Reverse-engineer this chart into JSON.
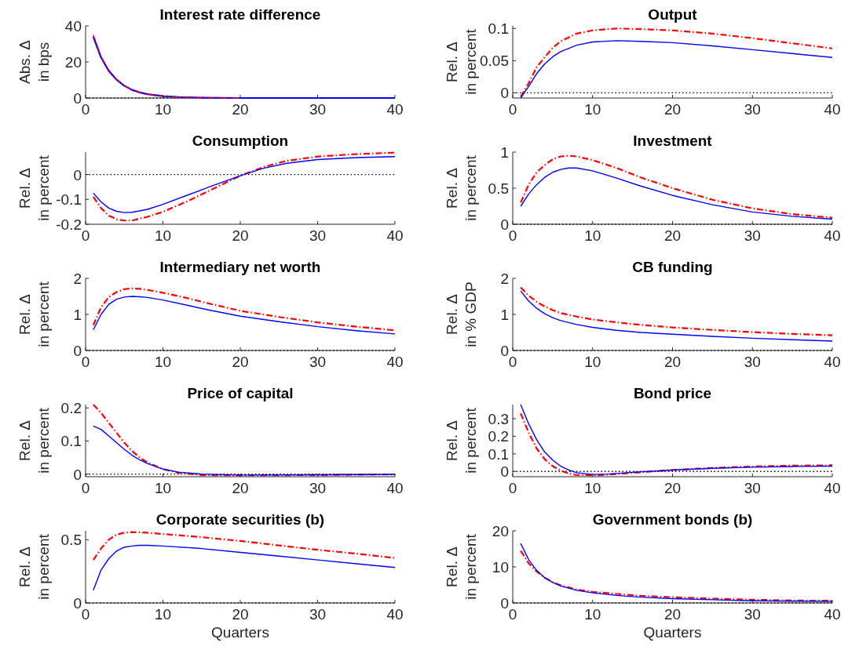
{
  "chart_data": [
    {
      "type": "line",
      "title": "Interest rate difference",
      "ylabel": "Abs. Δ\nin bps",
      "xlim": [
        0,
        40
      ],
      "xticks": [
        0,
        10,
        20,
        30,
        40
      ],
      "ylim": [
        0,
        40
      ],
      "yticks": [
        0,
        20,
        40
      ],
      "x": [
        1,
        2,
        3,
        4,
        5,
        6,
        7,
        8,
        10,
        12,
        15,
        20,
        30,
        40
      ],
      "grid": false,
      "ref_lines": [
        {
          "axis": "y",
          "value": 0,
          "color": "#000000",
          "line_style": "dotted"
        }
      ],
      "series": [
        {
          "color": "#0000ff",
          "line_style": "solid",
          "values": [
            34,
            22.5,
            15,
            10.2,
            6.8,
            4.5,
            3.1,
            2.1,
            1,
            0.5,
            0.2,
            0,
            0,
            0
          ]
        },
        {
          "color": "#ff0000",
          "line_style": "dashdot",
          "values": [
            35,
            23,
            15.5,
            10.5,
            7,
            4.7,
            3.2,
            2.2,
            1,
            0.5,
            0.2,
            0,
            null,
            null
          ]
        }
      ]
    },
    {
      "type": "line",
      "title": "Output",
      "ylabel": "Rel. Δ\nin percent",
      "xlim": [
        0,
        40
      ],
      "xticks": [
        0,
        10,
        20,
        30,
        40
      ],
      "ylim": [
        -0.008,
        0.104
      ],
      "yticks": [
        0,
        0.05,
        0.1
      ],
      "x": [
        1,
        2,
        3,
        4,
        5,
        6,
        8,
        10,
        13,
        16,
        20,
        25,
        30,
        35,
        40
      ],
      "grid": false,
      "ref_lines": [
        {
          "axis": "y",
          "value": 0,
          "color": "#000000",
          "line_style": "dotted"
        }
      ],
      "series": [
        {
          "color": "#ff0000",
          "line_style": "dashdot",
          "values": [
            -0.006,
            0.015,
            0.04,
            0.055,
            0.07,
            0.08,
            0.092,
            0.097,
            0.1,
            0.099,
            0.097,
            0.092,
            0.085,
            0.077,
            0.069
          ]
        },
        {
          "color": "#0000ff",
          "line_style": "solid",
          "values": [
            -0.008,
            0.01,
            0.03,
            0.045,
            0.056,
            0.064,
            0.074,
            0.079,
            0.081,
            0.08,
            0.078,
            0.073,
            0.067,
            0.061,
            0.055
          ]
        }
      ]
    },
    {
      "type": "line",
      "title": "Consumption",
      "ylabel": "Rel. Δ\nin percent",
      "xlim": [
        0,
        40
      ],
      "xticks": [
        0,
        10,
        20,
        30,
        40
      ],
      "ylim": [
        -0.2,
        0.09
      ],
      "yticks": [
        -0.2,
        -0.1,
        0
      ],
      "x": [
        1,
        2,
        3,
        4,
        5,
        6,
        8,
        10,
        13,
        16,
        20,
        23,
        26,
        30,
        35,
        40
      ],
      "grid": false,
      "ref_lines": [
        {
          "axis": "y",
          "value": 0,
          "color": "#000000",
          "line_style": "dotted"
        }
      ],
      "series": [
        {
          "color": "#ff0000",
          "line_style": "dashdot",
          "values": [
            -0.09,
            -0.135,
            -0.165,
            -0.18,
            -0.185,
            -0.185,
            -0.17,
            -0.15,
            -0.11,
            -0.065,
            -0.005,
            0.03,
            0.055,
            0.072,
            0.082,
            0.088
          ]
        },
        {
          "color": "#0000ff",
          "line_style": "solid",
          "values": [
            -0.075,
            -0.11,
            -0.135,
            -0.148,
            -0.153,
            -0.152,
            -0.14,
            -0.12,
            -0.085,
            -0.05,
            -0.005,
            0.025,
            0.045,
            0.06,
            0.068,
            0.072
          ]
        }
      ]
    },
    {
      "type": "line",
      "title": "Investment",
      "ylabel": "Rel. Δ\nin percent",
      "xlim": [
        0,
        40
      ],
      "xticks": [
        0,
        10,
        20,
        30,
        40
      ],
      "ylim": [
        0,
        1
      ],
      "yticks": [
        0,
        0.5,
        1
      ],
      "x": [
        1,
        2,
        3,
        4,
        5,
        6,
        7,
        8,
        10,
        13,
        16,
        20,
        25,
        30,
        35,
        40
      ],
      "grid": false,
      "ref_lines": [
        {
          "axis": "y",
          "value": 0,
          "color": "#000000",
          "line_style": "dotted"
        }
      ],
      "series": [
        {
          "color": "#ff0000",
          "line_style": "dashdot",
          "values": [
            0.3,
            0.55,
            0.72,
            0.82,
            0.9,
            0.94,
            0.95,
            0.94,
            0.89,
            0.78,
            0.65,
            0.5,
            0.34,
            0.22,
            0.14,
            0.09
          ]
        },
        {
          "color": "#0000ff",
          "line_style": "solid",
          "values": [
            0.25,
            0.42,
            0.55,
            0.65,
            0.72,
            0.76,
            0.78,
            0.78,
            0.74,
            0.64,
            0.53,
            0.4,
            0.27,
            0.17,
            0.11,
            0.07
          ]
        }
      ]
    },
    {
      "type": "line",
      "title": "Intermediary net worth",
      "ylabel": "Rel. Δ\nin percent",
      "xlim": [
        0,
        40
      ],
      "xticks": [
        0,
        10,
        20,
        30,
        40
      ],
      "ylim": [
        0,
        2
      ],
      "yticks": [
        0,
        1,
        2
      ],
      "x": [
        1,
        2,
        3,
        4,
        5,
        6,
        7,
        8,
        10,
        13,
        16,
        20,
        25,
        30,
        35,
        40
      ],
      "grid": false,
      "ref_lines": [
        {
          "axis": "y",
          "value": 0,
          "color": "#000000",
          "line_style": "dotted"
        }
      ],
      "series": [
        {
          "color": "#ff0000",
          "line_style": "dashdot",
          "values": [
            0.7,
            1.2,
            1.48,
            1.62,
            1.7,
            1.72,
            1.71,
            1.68,
            1.6,
            1.46,
            1.3,
            1.1,
            0.93,
            0.78,
            0.66,
            0.56
          ]
        },
        {
          "color": "#0000ff",
          "line_style": "solid",
          "values": [
            0.57,
            1.0,
            1.28,
            1.42,
            1.48,
            1.5,
            1.49,
            1.47,
            1.4,
            1.26,
            1.12,
            0.95,
            0.8,
            0.66,
            0.55,
            0.46
          ]
        }
      ]
    },
    {
      "type": "line",
      "title": "CB funding",
      "ylabel": "Rel. Δ\nin % GDP",
      "xlim": [
        0,
        40
      ],
      "xticks": [
        0,
        10,
        20,
        30,
        40
      ],
      "ylim": [
        0,
        2
      ],
      "yticks": [
        0,
        1,
        2
      ],
      "x": [
        1,
        2,
        3,
        4,
        5,
        6,
        8,
        10,
        13,
        16,
        20,
        25,
        30,
        35,
        40
      ],
      "grid": false,
      "ref_lines": [
        {
          "axis": "y",
          "value": 0,
          "color": "#000000",
          "line_style": "dotted"
        }
      ],
      "series": [
        {
          "color": "#ff0000",
          "line_style": "dashdot",
          "values": [
            1.75,
            1.52,
            1.35,
            1.22,
            1.12,
            1.04,
            0.94,
            0.86,
            0.78,
            0.71,
            0.64,
            0.57,
            0.51,
            0.46,
            0.42
          ]
        },
        {
          "color": "#0000ff",
          "line_style": "solid",
          "values": [
            1.65,
            1.37,
            1.17,
            1.02,
            0.91,
            0.83,
            0.72,
            0.64,
            0.56,
            0.5,
            0.45,
            0.39,
            0.34,
            0.3,
            0.26
          ]
        }
      ]
    },
    {
      "type": "line",
      "title": "Price of capital",
      "ylabel": "Rel. Δ\nin percent",
      "xlim": [
        0,
        40
      ],
      "xticks": [
        0,
        10,
        20,
        30,
        40
      ],
      "ylim": [
        -0.008,
        0.21
      ],
      "yticks": [
        0,
        0.1,
        0.2
      ],
      "x": [
        1,
        2,
        3,
        4,
        5,
        6,
        7,
        8,
        10,
        12,
        15,
        20,
        30,
        40
      ],
      "grid": false,
      "ref_lines": [
        {
          "axis": "y",
          "value": 0,
          "color": "#000000",
          "line_style": "dotted"
        }
      ],
      "series": [
        {
          "color": "#ff0000",
          "line_style": "dashdot",
          "values": [
            0.21,
            0.185,
            0.155,
            0.125,
            0.095,
            0.07,
            0.05,
            0.035,
            0.015,
            0.004,
            -0.003,
            -0.004,
            -0.003,
            -0.001
          ]
        },
        {
          "color": "#0000ff",
          "line_style": "solid",
          "values": [
            0.145,
            0.135,
            0.115,
            0.095,
            0.075,
            0.057,
            0.043,
            0.032,
            0.015,
            0.006,
            0,
            -0.003,
            -0.002,
            -0.001
          ]
        }
      ]
    },
    {
      "type": "line",
      "title": "Bond price",
      "ylabel": "Rel. Δ\nin percent",
      "xlim": [
        0,
        40
      ],
      "xticks": [
        0,
        10,
        20,
        30,
        40
      ],
      "ylim": [
        -0.03,
        0.38
      ],
      "yticks": [
        0,
        0.1,
        0.2,
        0.3
      ],
      "x": [
        1,
        2,
        3,
        4,
        5,
        6,
        7,
        8,
        10,
        12,
        15,
        20,
        25,
        30,
        35,
        40
      ],
      "grid": false,
      "ref_lines": [
        {
          "axis": "y",
          "value": 0,
          "color": "#000000",
          "line_style": "dotted"
        }
      ],
      "series": [
        {
          "color": "#ff0000",
          "line_style": "dashdot",
          "values": [
            0.33,
            0.22,
            0.13,
            0.07,
            0.03,
            0.005,
            -0.012,
            -0.02,
            -0.022,
            -0.018,
            -0.008,
            0.008,
            0.02,
            0.028,
            0.033,
            0.035
          ]
        },
        {
          "color": "#0000ff",
          "line_style": "solid",
          "values": [
            0.38,
            0.27,
            0.18,
            0.11,
            0.065,
            0.03,
            0.008,
            -0.007,
            -0.017,
            -0.015,
            -0.005,
            0.008,
            0.018,
            0.024,
            0.028,
            0.03
          ]
        }
      ]
    },
    {
      "type": "line",
      "title": "Corporate securities (b)",
      "xlabel": "Quarters",
      "ylabel": "Rel. Δ\nin percent",
      "xlim": [
        0,
        40
      ],
      "xticks": [
        0,
        10,
        20,
        30,
        40
      ],
      "ylim": [
        0,
        0.57
      ],
      "yticks": [
        0,
        0.5
      ],
      "x": [
        1,
        2,
        3,
        4,
        5,
        6,
        7,
        8,
        10,
        15,
        20,
        25,
        30,
        35,
        40
      ],
      "grid": false,
      "ref_lines": [
        {
          "axis": "y",
          "value": 0,
          "color": "#000000",
          "line_style": "dotted"
        }
      ],
      "series": [
        {
          "color": "#ff0000",
          "line_style": "dashdot",
          "values": [
            0.34,
            0.43,
            0.5,
            0.54,
            0.555,
            0.56,
            0.558,
            0.555,
            0.545,
            0.52,
            0.49,
            0.455,
            0.42,
            0.39,
            0.355
          ]
        },
        {
          "color": "#0000ff",
          "line_style": "solid",
          "values": [
            0.1,
            0.26,
            0.35,
            0.41,
            0.44,
            0.45,
            0.455,
            0.455,
            0.45,
            0.43,
            0.4,
            0.37,
            0.34,
            0.31,
            0.28
          ]
        }
      ]
    },
    {
      "type": "line",
      "title": "Government bonds (b)",
      "xlabel": "Quarters",
      "ylabel": "Rel. Δ\nin percent",
      "xlim": [
        0,
        40
      ],
      "xticks": [
        0,
        10,
        20,
        30,
        40
      ],
      "ylim": [
        0,
        20
      ],
      "yticks": [
        0,
        10,
        20
      ],
      "x": [
        1,
        2,
        3,
        4,
        5,
        6,
        8,
        10,
        13,
        16,
        20,
        25,
        30,
        35,
        40
      ],
      "grid": false,
      "ref_lines": [
        {
          "axis": "y",
          "value": 0,
          "color": "#000000",
          "line_style": "dotted"
        }
      ],
      "series": [
        {
          "color": "#ff0000",
          "line_style": "dashdot",
          "values": [
            14.5,
            11,
            8.7,
            7,
            5.8,
            4.9,
            3.7,
            3.1,
            2.5,
            2,
            1.6,
            1.2,
            0.9,
            0.7,
            0.6
          ]
        },
        {
          "color": "#0000ff",
          "line_style": "solid",
          "values": [
            16.5,
            12,
            9,
            7,
            5.7,
            4.7,
            3.5,
            2.8,
            2.1,
            1.6,
            1.2,
            0.9,
            0.6,
            0.5,
            0.4
          ]
        }
      ]
    }
  ]
}
